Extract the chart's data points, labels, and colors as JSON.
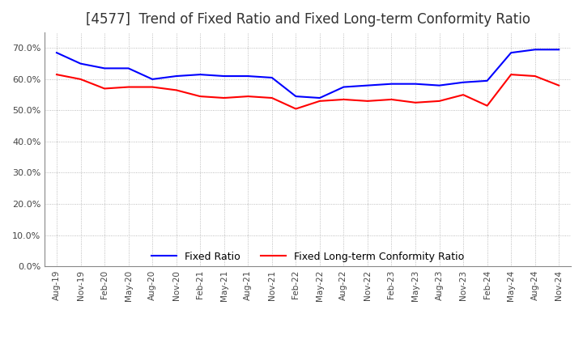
{
  "title": "[4577]  Trend of Fixed Ratio and Fixed Long-term Conformity Ratio",
  "x_labels": [
    "Aug-19",
    "Nov-19",
    "Feb-20",
    "May-20",
    "Aug-20",
    "Nov-20",
    "Feb-21",
    "May-21",
    "Aug-21",
    "Nov-21",
    "Feb-22",
    "May-22",
    "Aug-22",
    "Nov-22",
    "Feb-23",
    "May-23",
    "Aug-23",
    "Nov-23",
    "Feb-24",
    "May-24",
    "Aug-24",
    "Nov-24"
  ],
  "fixed_ratio": [
    68.5,
    65.0,
    63.5,
    63.5,
    60.0,
    61.0,
    61.5,
    61.0,
    61.0,
    60.5,
    54.5,
    54.0,
    57.5,
    58.0,
    58.5,
    58.5,
    58.0,
    59.0,
    59.5,
    68.5,
    69.5,
    69.5
  ],
  "fixed_ltcr": [
    61.5,
    60.0,
    57.0,
    57.5,
    57.5,
    56.5,
    54.5,
    54.0,
    54.5,
    54.0,
    50.5,
    53.0,
    53.5,
    53.0,
    53.5,
    52.5,
    53.0,
    55.0,
    51.5,
    61.5,
    61.0,
    58.0
  ],
  "fixed_ratio_color": "#0000FF",
  "fixed_ltcr_color": "#FF0000",
  "ylim": [
    0,
    75
  ],
  "yticks": [
    0.0,
    10.0,
    20.0,
    30.0,
    40.0,
    50.0,
    60.0,
    70.0
  ],
  "grid_color": "#aaaaaa",
  "background_color": "#ffffff",
  "title_fontsize": 12,
  "legend_labels": [
    "Fixed Ratio",
    "Fixed Long-term Conformity Ratio"
  ]
}
